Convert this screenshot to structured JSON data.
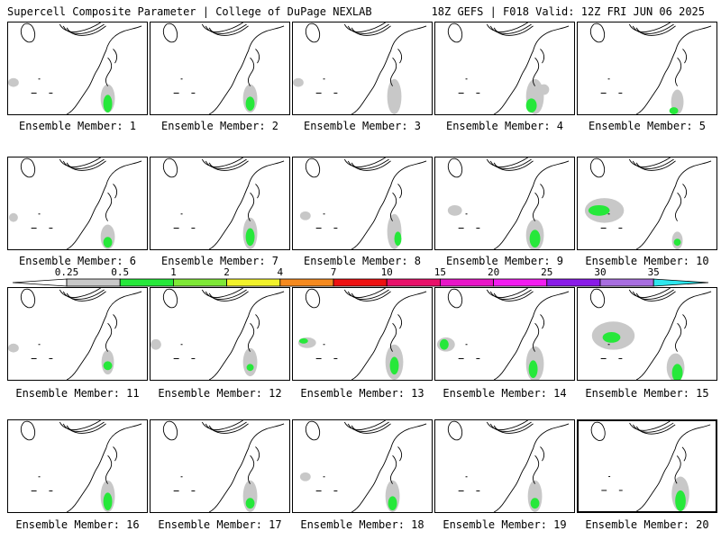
{
  "header": {
    "left_title": "Supercell Composite Parameter | College of DuPage NEXLAB",
    "right_title": "18Z GEFS | F018 Valid: 12Z FRI JUN 06 2025"
  },
  "colors": {
    "shade_025": "#c8c8c8",
    "shade_05": "#26e83a",
    "shade_1": "#7ee837",
    "shade_2": "#f2f22a",
    "shade_4": "#f58a1f",
    "shade_7": "#ee1111",
    "shade_10": "#e8116a",
    "shade_15": "#e815c8",
    "shade_20": "#f21cf0",
    "shade_25": "#8a1be8",
    "shade_30": "#a86ee0",
    "shade_35": "#2ee6ee"
  },
  "colorbar": {
    "labels": [
      "0.25",
      "0.5",
      "1",
      "2",
      "4",
      "7",
      "10",
      "15",
      "20",
      "25",
      "30",
      "35"
    ]
  },
  "panels": [
    {
      "label": "Ensemble Member: 1",
      "selected": false
    },
    {
      "label": "Ensemble Member: 2",
      "selected": false
    },
    {
      "label": "Ensemble Member: 3",
      "selected": false
    },
    {
      "label": "Ensemble Member: 4",
      "selected": false
    },
    {
      "label": "Ensemble Member: 5",
      "selected": false
    },
    {
      "label": "Ensemble Member: 6",
      "selected": false
    },
    {
      "label": "Ensemble Member: 7",
      "selected": false
    },
    {
      "label": "Ensemble Member: 8",
      "selected": false
    },
    {
      "label": "Ensemble Member: 9",
      "selected": false
    },
    {
      "label": "Ensemble Member: 10",
      "selected": false
    },
    {
      "label": "Ensemble Member: 11",
      "selected": false
    },
    {
      "label": "Ensemble Member: 12",
      "selected": false
    },
    {
      "label": "Ensemble Member: 13",
      "selected": false
    },
    {
      "label": "Ensemble Member: 14",
      "selected": false
    },
    {
      "label": "Ensemble Member: 15",
      "selected": false
    },
    {
      "label": "Ensemble Member: 16",
      "selected": false
    },
    {
      "label": "Ensemble Member: 17",
      "selected": false
    },
    {
      "label": "Ensemble Member: 18",
      "selected": false
    },
    {
      "label": "Ensemble Member: 19",
      "selected": false
    },
    {
      "label": "Ensemble Member: 20",
      "selected": true
    }
  ]
}
